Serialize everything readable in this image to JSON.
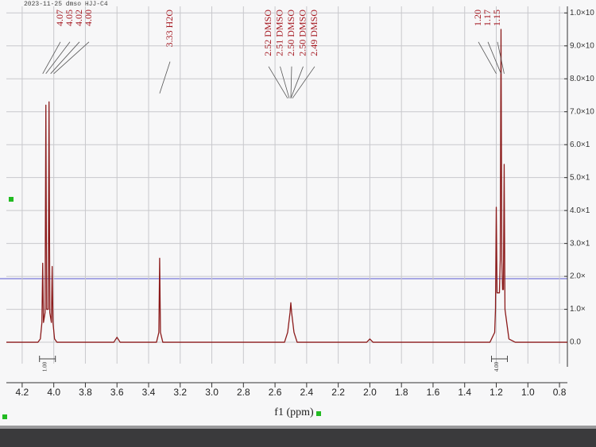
{
  "chart_data": {
    "type": "line",
    "title": "2023-11-25  dmso HJJ-C4",
    "xlabel": "f1 (ppm)",
    "xlim": [
      4.3,
      0.75
    ],
    "xticks": [
      4.2,
      {
        "value": 4,
        "label": "4.0"
      },
      3.8,
      3.6,
      3.4,
      3.2,
      {
        "value": 3,
        "label": "3.0"
      },
      2.8,
      2.6,
      2.4,
      2.2,
      {
        "value": 2,
        "label": "2.0"
      },
      1.8,
      1.6,
      1.4,
      1.2,
      {
        "value": 1,
        "label": "1.0"
      },
      0.8
    ],
    "ylim": [
      -0.65,
      10.2
    ],
    "yticks": [
      {
        "value": 0,
        "label": "0.0"
      },
      {
        "value": 1,
        "label": "1.0×"
      },
      {
        "value": 2,
        "label": "2.0×"
      },
      {
        "value": 3,
        "label": "3.0×1"
      },
      {
        "value": 4,
        "label": "4.0×1"
      },
      {
        "value": 5,
        "label": "5.0×1"
      },
      {
        "value": 6,
        "label": "6.0×1"
      },
      {
        "value": 7,
        "label": "7.0×10"
      },
      {
        "value": 8,
        "label": "8.0×10"
      },
      {
        "value": 9,
        "label": "9.0×10"
      },
      {
        "value": 10,
        "label": "1.0×10"
      }
    ],
    "grid": true,
    "series": [
      {
        "name": "spectrum",
        "color": "#8b1a1a",
        "x": [
          4.3,
          4.1,
          4.085,
          4.075,
          4.07,
          4.065,
          4.055,
          4.05,
          4.045,
          4.035,
          4.03,
          4.025,
          4.015,
          4.01,
          4.005,
          3.995,
          3.98,
          3.62,
          3.6,
          3.58,
          3.35,
          3.335,
          3.33,
          3.325,
          3.31,
          2.54,
          2.52,
          2.505,
          2.5,
          2.495,
          2.48,
          2.46,
          2.02,
          2.0,
          1.98,
          1.24,
          1.21,
          1.205,
          1.2,
          1.195,
          1.18,
          1.175,
          1.17,
          1.165,
          1.16,
          1.155,
          1.15,
          1.145,
          1.12,
          1.08,
          0.75
        ],
        "values": [
          0,
          0,
          0.1,
          0.6,
          2.4,
          0.6,
          0.9,
          7.2,
          1.0,
          1.0,
          7.3,
          0.9,
          0.6,
          2.3,
          0.6,
          0.1,
          0,
          0,
          0.15,
          0,
          0,
          0.3,
          2.55,
          0.3,
          0,
          0,
          0.3,
          0.9,
          1.2,
          0.9,
          0.3,
          0,
          0,
          0.1,
          0,
          0,
          0.3,
          1.0,
          4.1,
          1.5,
          1.5,
          2.5,
          9.5,
          2.5,
          1.6,
          1.6,
          5.4,
          1.0,
          0.1,
          0,
          0
        ]
      }
    ],
    "annotations": [
      {
        "labels": [
          "4.07",
          "4.05",
          "4.02",
          "4.00"
        ]
      },
      {
        "labels": [
          "3.33 H2O"
        ]
      },
      {
        "labels": [
          "2.52 DMSO",
          "2.51 DMSO",
          "2.50 DMSO",
          "2.50 DMSO",
          "2.49 DMSO"
        ]
      },
      {
        "labels": [
          "1.20",
          "1.17",
          "1.15"
        ]
      }
    ],
    "integrals": [
      "1.00",
      "4.00"
    ]
  }
}
